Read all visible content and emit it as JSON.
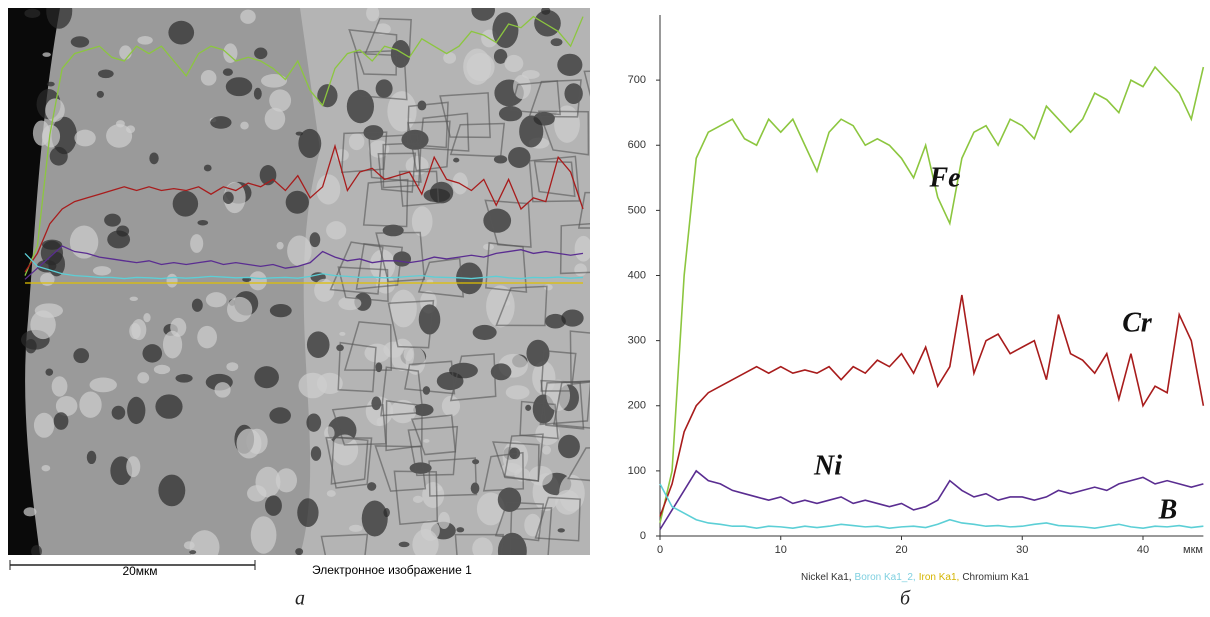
{
  "chart_data": {
    "type": "line",
    "xlim": [
      0,
      45
    ],
    "ylim": [
      0,
      800
    ],
    "xticks": [
      0,
      10,
      20,
      30,
      40
    ],
    "yticks": [
      0,
      100,
      200,
      300,
      400,
      500,
      600,
      700
    ],
    "x_unit": "мкм",
    "x": [
      0,
      1,
      2,
      3,
      4,
      5,
      6,
      7,
      8,
      9,
      10,
      11,
      12,
      13,
      14,
      15,
      16,
      17,
      18,
      19,
      20,
      21,
      22,
      23,
      24,
      25,
      26,
      27,
      28,
      29,
      30,
      31,
      32,
      33,
      34,
      35,
      36,
      37,
      38,
      39,
      40,
      41,
      42,
      43,
      44,
      45
    ],
    "series": [
      {
        "name": "Fe",
        "color": "#8cc63f",
        "values": [
          20,
          100,
          400,
          580,
          620,
          630,
          640,
          610,
          600,
          640,
          620,
          640,
          600,
          560,
          620,
          640,
          630,
          600,
          610,
          600,
          580,
          550,
          600,
          520,
          480,
          580,
          620,
          630,
          600,
          640,
          630,
          610,
          660,
          640,
          620,
          640,
          680,
          670,
          650,
          700,
          690,
          720,
          700,
          680,
          640,
          720
        ]
      },
      {
        "name": "Cr",
        "color": "#a81c1c",
        "values": [
          30,
          80,
          160,
          200,
          220,
          230,
          240,
          250,
          260,
          250,
          260,
          250,
          255,
          250,
          260,
          240,
          260,
          250,
          270,
          260,
          280,
          250,
          290,
          230,
          260,
          370,
          250,
          300,
          310,
          280,
          290,
          300,
          240,
          340,
          280,
          270,
          250,
          280,
          210,
          280,
          200,
          230,
          220,
          340,
          300,
          200
        ]
      },
      {
        "name": "Ni",
        "color": "#5a2d91",
        "values": [
          10,
          40,
          70,
          100,
          85,
          80,
          70,
          65,
          60,
          55,
          60,
          50,
          55,
          50,
          55,
          60,
          50,
          55,
          50,
          45,
          50,
          40,
          45,
          55,
          85,
          70,
          60,
          65,
          55,
          60,
          60,
          55,
          60,
          70,
          65,
          70,
          75,
          70,
          80,
          85,
          90,
          80,
          85,
          80,
          75,
          80
        ]
      },
      {
        "name": "B",
        "color": "#5ccfd6",
        "values": [
          80,
          45,
          35,
          25,
          20,
          18,
          15,
          15,
          12,
          15,
          14,
          12,
          15,
          13,
          15,
          18,
          16,
          14,
          15,
          12,
          14,
          15,
          13,
          18,
          25,
          20,
          18,
          15,
          16,
          14,
          15,
          18,
          20,
          16,
          15,
          14,
          12,
          15,
          18,
          14,
          12,
          15,
          14,
          16,
          13,
          15
        ]
      }
    ],
    "legend": [
      {
        "text": "Nickel Ka1,",
        "color": "#333333"
      },
      {
        "text": "Boron Ka1_2,",
        "color": "#7fd0e0"
      },
      {
        "text": "Iron Ka1,",
        "color": "#d4b400"
      },
      {
        "text": "Chromium Ka1",
        "color": "#333333"
      }
    ]
  },
  "panel_a": {
    "scale_bar": "20мкм",
    "image_label": "Электронное изображение 1"
  },
  "captions": [
    "а",
    "б"
  ]
}
